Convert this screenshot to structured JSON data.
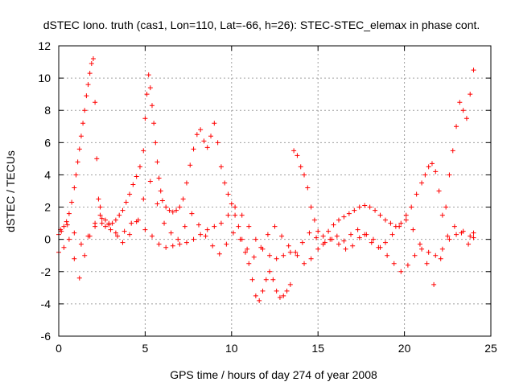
{
  "chart_data": {
    "type": "scatter",
    "title": "dSTEC Iono. truth (cas1, Lon=110, Lat=-66, h=26): STEC-STEC_elemax in phase cont.",
    "xlabel": "GPS time / hours of day 274 of year 2008",
    "ylabel": "dSTEC  / TECUs",
    "xlim": [
      0,
      25
    ],
    "ylim": [
      -6,
      12
    ],
    "xticks": [
      0,
      5,
      10,
      15,
      20,
      25
    ],
    "yticks": [
      -6,
      -4,
      -2,
      0,
      2,
      4,
      6,
      8,
      10,
      12
    ],
    "xtick_labels": [
      "0",
      "5",
      "10",
      "15",
      "20",
      "25"
    ],
    "ytick_labels": [
      "-6",
      "-4",
      "-2",
      "0",
      "2",
      "4",
      "6",
      "8",
      "10",
      "12"
    ],
    "grid": true,
    "marker": "+",
    "color": "#ff0000",
    "series": [
      {
        "x": [
          0.0,
          0.15,
          0.3,
          0.45,
          0.6,
          0.75,
          0.9,
          1.0,
          1.1,
          1.2,
          1.3,
          1.4,
          1.5,
          1.6,
          1.7,
          1.8,
          1.9,
          2.0,
          2.1,
          2.2,
          2.3,
          2.4,
          2.5,
          2.7,
          2.9,
          3.1,
          3.3,
          3.5,
          3.7,
          3.9,
          4.1,
          4.3,
          4.5,
          4.7,
          4.9,
          5.0,
          5.1,
          5.2,
          5.3,
          5.4,
          5.5,
          5.6,
          5.7,
          5.8,
          5.9,
          6.0,
          6.2,
          6.4,
          6.6,
          6.8,
          7.0,
          7.2,
          7.4,
          7.6,
          7.8,
          8.0,
          8.2,
          8.4,
          8.6,
          8.8,
          9.0,
          9.2,
          9.4,
          9.6,
          9.8,
          10.0,
          10.2,
          10.4,
          10.6,
          10.8,
          11.0,
          11.2,
          11.4,
          11.6,
          11.8,
          12.0,
          12.2,
          12.4,
          12.6,
          12.8,
          13.0,
          13.2,
          13.4,
          13.6,
          13.8,
          14.0,
          14.2,
          14.4,
          14.6,
          14.8,
          15.0,
          15.3,
          15.6,
          15.9,
          16.2,
          16.5,
          16.8,
          17.1,
          17.4,
          17.7,
          18.0,
          18.3,
          18.6,
          18.9,
          19.2,
          19.5,
          19.8,
          20.1,
          20.4,
          20.7,
          21.0,
          21.2,
          21.4,
          21.6,
          21.8,
          22.0,
          22.2,
          22.4,
          22.6,
          22.8,
          23.0,
          23.2,
          23.4,
          23.6,
          23.8,
          24.0
        ],
        "values": [
          0.3,
          0.5,
          0.8,
          1.1,
          1.6,
          2.3,
          3.2,
          4.0,
          4.8,
          5.6,
          6.4,
          7.2,
          8.0,
          8.9,
          9.6,
          10.3,
          10.9,
          11.2,
          8.5,
          5.0,
          2.5,
          1.5,
          1.0,
          0.8,
          0.9,
          1.0,
          1.2,
          1.5,
          1.8,
          2.3,
          2.8,
          3.4,
          3.9,
          4.5,
          5.5,
          7.5,
          9.0,
          10.2,
          9.4,
          8.3,
          7.2,
          6.0,
          4.8,
          3.8,
          3.0,
          2.4,
          2.0,
          1.8,
          1.7,
          1.8,
          2.0,
          2.5,
          3.5,
          4.6,
          5.6,
          6.5,
          6.8,
          6.1,
          5.7,
          6.4,
          7.2,
          6.0,
          4.5,
          3.5,
          2.8,
          2.2,
          1.5,
          0.8,
          0.0,
          -0.8,
          -1.5,
          -2.5,
          -3.5,
          -3.8,
          -3.2,
          -2.5,
          -2.0,
          -2.5,
          -3.2,
          -3.6,
          -3.5,
          -3.2,
          -2.8,
          5.5,
          5.2,
          4.5,
          4.0,
          3.2,
          2.0,
          1.2,
          0.5,
          0.2,
          0.5,
          0.9,
          1.2,
          1.4,
          1.6,
          1.8,
          2.0,
          2.1,
          2.0,
          1.8,
          1.5,
          1.2,
          1.0,
          0.8,
          1.0,
          1.5,
          2.0,
          2.8,
          3.5,
          4.0,
          4.5,
          4.7,
          4.2,
          3.0,
          1.5,
          2.0,
          4.0,
          5.5,
          7.0,
          8.5,
          8.0,
          7.5,
          9.0,
          10.5
        ]
      },
      {
        "x": [
          0.0,
          0.3,
          0.6,
          0.9,
          1.2,
          1.5,
          1.8,
          2.1,
          2.4,
          2.7,
          3.0,
          3.4,
          3.8,
          4.2,
          4.6,
          5.0,
          5.4,
          5.8,
          6.2,
          6.6,
          7.0,
          7.4,
          7.8,
          8.2,
          8.6,
          9.0,
          9.4,
          9.8,
          10.2,
          10.6,
          11.0,
          11.4,
          11.8,
          12.2,
          12.6,
          13.0,
          13.4,
          13.8,
          14.2,
          14.6,
          15.0,
          15.4,
          15.8,
          16.2,
          16.6,
          17.0,
          17.4,
          17.8,
          18.2,
          18.6,
          19.0,
          19.4,
          19.8,
          20.2,
          20.6,
          21.0,
          21.4,
          21.8,
          22.2,
          22.6,
          23.0,
          23.4,
          23.8,
          24.0
        ],
        "values": [
          -0.8,
          -0.5,
          0.0,
          -1.2,
          -2.4,
          -1.0,
          0.2,
          1.0,
          2.0,
          1.2,
          0.6,
          0.2,
          0.5,
          1.0,
          1.2,
          0.6,
          0.2,
          -0.3,
          -0.5,
          -0.4,
          -0.3,
          -0.2,
          0.0,
          0.3,
          0.6,
          0.8,
          1.0,
          1.5,
          2.0,
          1.5,
          0.8,
          0.0,
          -0.6,
          -1.0,
          -1.2,
          -1.0,
          -0.8,
          -1.0,
          -1.5,
          -1.2,
          -0.6,
          -0.2,
          0.0,
          -0.3,
          -0.6,
          -0.4,
          0.1,
          0.3,
          0.0,
          -0.5,
          -1.0,
          -1.5,
          -2.0,
          -1.6,
          -1.0,
          -0.6,
          -0.8,
          -1.0,
          -0.6,
          0.0,
          0.3,
          0.5,
          0.2,
          0.4
        ]
      },
      {
        "x": [
          0.1,
          0.5,
          0.9,
          1.3,
          1.7,
          2.1,
          2.5,
          2.9,
          3.3,
          3.7,
          4.1,
          4.5,
          4.9,
          5.3,
          5.7,
          6.1,
          6.5,
          6.9,
          7.3,
          7.7,
          8.1,
          8.5,
          8.9,
          9.3,
          9.7,
          10.1,
          10.5,
          10.9,
          11.3,
          11.7,
          12.1,
          12.5,
          12.9,
          13.3,
          13.7,
          14.1,
          14.5,
          14.9,
          15.3,
          15.7,
          16.1,
          16.5,
          16.9,
          17.3,
          17.7,
          18.1,
          18.5,
          18.9,
          19.3,
          19.7,
          20.1,
          20.5,
          20.9,
          21.3,
          21.7,
          22.1,
          22.5,
          22.9,
          23.3,
          23.7,
          24.0
        ],
        "values": [
          0.6,
          0.9,
          0.4,
          -0.3,
          0.2,
          0.8,
          1.3,
          1.0,
          0.4,
          -0.2,
          0.3,
          1.1,
          2.5,
          3.6,
          2.2,
          1.0,
          0.4,
          0.0,
          0.8,
          1.6,
          0.9,
          0.2,
          -0.4,
          -0.9,
          -0.3,
          0.4,
          0.0,
          -0.6,
          -1.1,
          -0.5,
          0.3,
          0.8,
          0.2,
          -0.4,
          -0.8,
          -0.2,
          0.4,
          0.1,
          -0.3,
          0.0,
          0.2,
          -0.1,
          0.3,
          0.6,
          0.3,
          -0.2,
          -0.5,
          -0.2,
          0.3,
          0.8,
          1.2,
          0.6,
          -0.3,
          -1.5,
          -2.8,
          -1.2,
          0.2,
          0.8,
          0.4,
          -0.3,
          0.1
        ]
      }
    ]
  }
}
